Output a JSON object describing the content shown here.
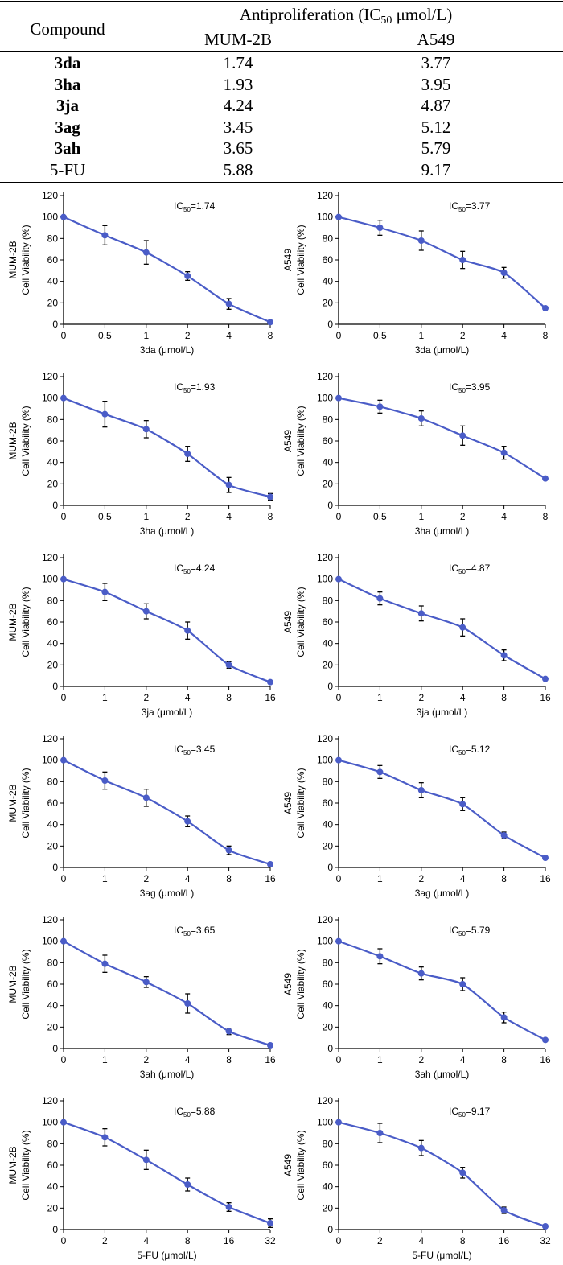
{
  "table": {
    "compound_header": "Compound",
    "group_header_prefix": "Antiproliferation (IC",
    "group_header_sub": "50",
    "group_header_suffix": " μmol/L)",
    "col_mum": "MUM-2B",
    "col_a549": "A549",
    "rows": [
      {
        "compound": "3da",
        "mum": "1.74",
        "a549": "3.77",
        "bold": true
      },
      {
        "compound": "3ha",
        "mum": "1.93",
        "a549": "3.95",
        "bold": true
      },
      {
        "compound": "3ja",
        "mum": "4.24",
        "a549": "4.87",
        "bold": true
      },
      {
        "compound": "3ag",
        "mum": "3.45",
        "a549": "5.12",
        "bold": true
      },
      {
        "compound": "3ah",
        "mum": "3.65",
        "a549": "5.79",
        "bold": true
      },
      {
        "compound": "5-FU",
        "mum": "5.88",
        "a549": "9.17",
        "bold": false
      }
    ]
  },
  "colors": {
    "series": "#4a5cc7",
    "axis": "#000000"
  },
  "chart_data": [
    {
      "type": "line",
      "ylabel_line1": "MUM-2B",
      "ylabel_line2": "Cell Viability (%)",
      "xlabel": "3da (μmol/L)",
      "ic50_label": "IC",
      "ic50_sub": "50",
      "ic50_value": "=1.74",
      "x": [
        "0",
        "0.5",
        "1",
        "2",
        "4",
        "8"
      ],
      "values": [
        100,
        83,
        67,
        45,
        19,
        2
      ],
      "errors": [
        0,
        9,
        11,
        4,
        5,
        0
      ],
      "ylim": [
        0,
        120
      ],
      "yticks": [
        0,
        20,
        40,
        60,
        80,
        100,
        120
      ]
    },
    {
      "type": "line",
      "ylabel_line1": "A549",
      "ylabel_line2": "Cell Viability (%)",
      "xlabel": "3da (μmol/L)",
      "ic50_label": "IC",
      "ic50_sub": "50",
      "ic50_value": "=3.77",
      "x": [
        "0",
        "0.5",
        "1",
        "2",
        "4",
        "8"
      ],
      "values": [
        100,
        90,
        78,
        60,
        48,
        15
      ],
      "errors": [
        0,
        7,
        9,
        8,
        5,
        0
      ],
      "ylim": [
        0,
        120
      ],
      "yticks": [
        0,
        20,
        40,
        60,
        80,
        100,
        120
      ]
    },
    {
      "type": "line",
      "ylabel_line1": "MUM-2B",
      "ylabel_line2": "Cell Viability (%)",
      "xlabel": "3ha (μmol/L)",
      "ic50_label": "IC",
      "ic50_sub": "50",
      "ic50_value": "=1.93",
      "x": [
        "0",
        "0.5",
        "1",
        "2",
        "4",
        "8"
      ],
      "values": [
        100,
        85,
        71,
        48,
        19,
        8
      ],
      "errors": [
        0,
        12,
        8,
        7,
        7,
        3
      ],
      "ylim": [
        0,
        120
      ],
      "yticks": [
        0,
        20,
        40,
        60,
        80,
        100,
        120
      ]
    },
    {
      "type": "line",
      "ylabel_line1": "A549",
      "ylabel_line2": "Cell Viability (%)",
      "xlabel": "3ha (μmol/L)",
      "ic50_label": "IC",
      "ic50_sub": "50",
      "ic50_value": "=3.95",
      "x": [
        "0",
        "0.5",
        "1",
        "2",
        "4",
        "8"
      ],
      "values": [
        100,
        92,
        81,
        65,
        49,
        25
      ],
      "errors": [
        0,
        6,
        7,
        9,
        6,
        0
      ],
      "ylim": [
        0,
        120
      ],
      "yticks": [
        0,
        20,
        40,
        60,
        80,
        100,
        120
      ]
    },
    {
      "type": "line",
      "ylabel_line1": "MUM-2B",
      "ylabel_line2": "Cell Viability (%)",
      "xlabel": "3ja (μmol/L)",
      "ic50_label": "IC",
      "ic50_sub": "50",
      "ic50_value": "=4.24",
      "x": [
        "0",
        "1",
        "2",
        "4",
        "8",
        "16"
      ],
      "values": [
        100,
        88,
        70,
        52,
        20,
        4
      ],
      "errors": [
        0,
        8,
        7,
        8,
        3,
        0
      ],
      "ylim": [
        0,
        120
      ],
      "yticks": [
        0,
        20,
        40,
        60,
        80,
        100,
        120
      ]
    },
    {
      "type": "line",
      "ylabel_line1": "A549",
      "ylabel_line2": "Cell Viability (%)",
      "xlabel": "3ja (μmol/L)",
      "ic50_label": "IC",
      "ic50_sub": "50",
      "ic50_value": "=4.87",
      "x": [
        "0",
        "1",
        "2",
        "4",
        "8",
        "16"
      ],
      "values": [
        100,
        82,
        68,
        55,
        29,
        7
      ],
      "errors": [
        0,
        6,
        7,
        8,
        5,
        0
      ],
      "ylim": [
        0,
        120
      ],
      "yticks": [
        0,
        20,
        40,
        60,
        80,
        100,
        120
      ]
    },
    {
      "type": "line",
      "ylabel_line1": "MUM-2B",
      "ylabel_line2": "Cell Viability (%)",
      "xlabel": "3ag (μmol/L)",
      "ic50_label": "IC",
      "ic50_sub": "50",
      "ic50_value": "=3.45",
      "x": [
        "0",
        "1",
        "2",
        "4",
        "8",
        "16"
      ],
      "values": [
        100,
        81,
        65,
        43,
        16,
        3
      ],
      "errors": [
        0,
        8,
        8,
        5,
        4,
        0
      ],
      "ylim": [
        0,
        120
      ],
      "yticks": [
        0,
        20,
        40,
        60,
        80,
        100,
        120
      ]
    },
    {
      "type": "line",
      "ylabel_line1": "A549",
      "ylabel_line2": "Cell Viability (%)",
      "xlabel": "3ag (μmol/L)",
      "ic50_label": "IC",
      "ic50_sub": "50",
      "ic50_value": "=5.12",
      "x": [
        "0",
        "1",
        "2",
        "4",
        "8",
        "16"
      ],
      "values": [
        100,
        89,
        72,
        59,
        30,
        9
      ],
      "errors": [
        0,
        6,
        7,
        6,
        3,
        0
      ],
      "ylim": [
        0,
        120
      ],
      "yticks": [
        0,
        20,
        40,
        60,
        80,
        100,
        120
      ]
    },
    {
      "type": "line",
      "ylabel_line1": "MUM-2B",
      "ylabel_line2": "Cell Viability (%)",
      "xlabel": "3ah (μmol/L)",
      "ic50_label": "IC",
      "ic50_sub": "50",
      "ic50_value": "=3.65",
      "x": [
        "0",
        "1",
        "2",
        "4",
        "8",
        "16"
      ],
      "values": [
        100,
        79,
        62,
        42,
        16,
        3
      ],
      "errors": [
        0,
        8,
        5,
        9,
        3,
        0
      ],
      "ylim": [
        0,
        120
      ],
      "yticks": [
        0,
        20,
        40,
        60,
        80,
        100,
        120
      ]
    },
    {
      "type": "line",
      "ylabel_line1": "A549",
      "ylabel_line2": "Cell Viability (%)",
      "xlabel": "3ah (μmol/L)",
      "ic50_label": "IC",
      "ic50_sub": "50",
      "ic50_value": "=5.79",
      "x": [
        "0",
        "1",
        "2",
        "4",
        "8",
        "16"
      ],
      "values": [
        100,
        86,
        70,
        60,
        29,
        8
      ],
      "errors": [
        0,
        7,
        6,
        6,
        5,
        0
      ],
      "ylim": [
        0,
        120
      ],
      "yticks": [
        0,
        20,
        40,
        60,
        80,
        100,
        120
      ]
    },
    {
      "type": "line",
      "ylabel_line1": "MUM-2B",
      "ylabel_line2": "Cell Viability (%)",
      "xlabel": "5-FU (μmol/L)",
      "ic50_label": "IC",
      "ic50_sub": "50",
      "ic50_value": "=5.88",
      "x": [
        "0",
        "2",
        "4",
        "8",
        "16",
        "32"
      ],
      "values": [
        100,
        86,
        65,
        42,
        21,
        6
      ],
      "errors": [
        0,
        8,
        9,
        6,
        4,
        4
      ],
      "ylim": [
        0,
        120
      ],
      "yticks": [
        0,
        20,
        40,
        60,
        80,
        100,
        120
      ]
    },
    {
      "type": "line",
      "ylabel_line1": "A549",
      "ylabel_line2": "Cell Viability (%)",
      "xlabel": "5-FU (μmol/L)",
      "ic50_label": "IC",
      "ic50_sub": "50",
      "ic50_value": "=9.17",
      "x": [
        "0",
        "2",
        "4",
        "8",
        "16",
        "32"
      ],
      "values": [
        100,
        90,
        76,
        53,
        18,
        3
      ],
      "errors": [
        0,
        9,
        7,
        5,
        3,
        0
      ],
      "ylim": [
        0,
        120
      ],
      "yticks": [
        0,
        20,
        40,
        60,
        80,
        100,
        120
      ]
    }
  ]
}
